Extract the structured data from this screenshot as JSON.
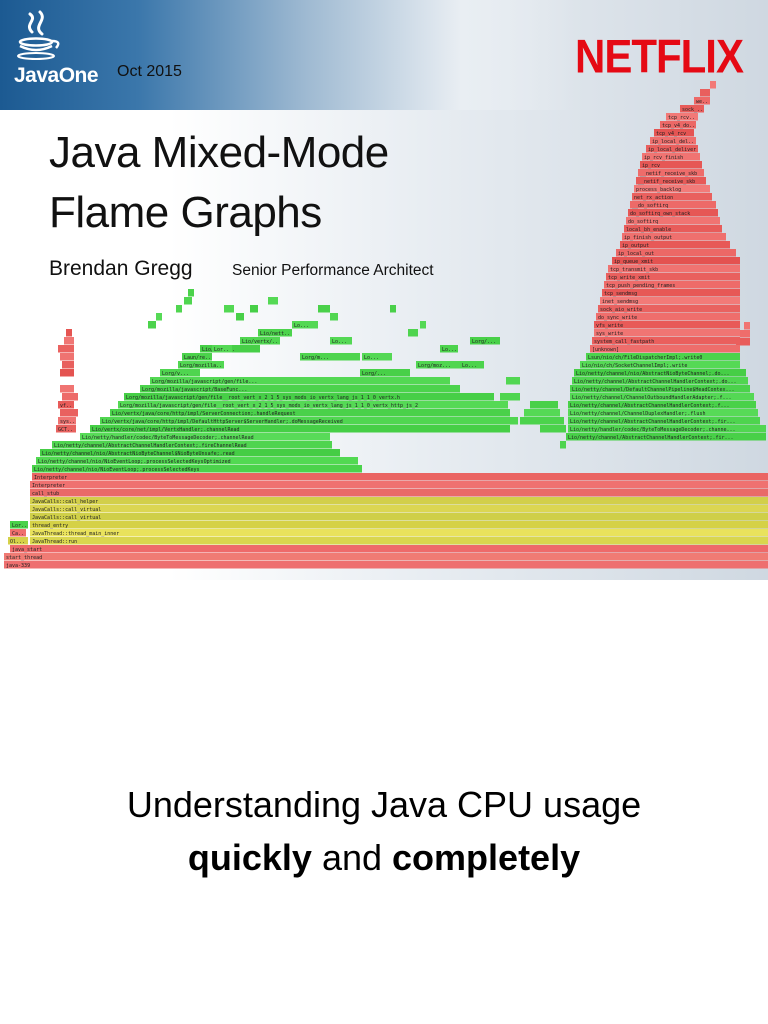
{
  "slide": {
    "logo_text": "JavaOne",
    "date": "Oct 2015",
    "brand": "NETFLIX",
    "title_line1": "Java Mixed-Mode",
    "title_line2": "Flame Graphs",
    "author": "Brendan Gregg",
    "author_role": "Senior Performance Architect"
  },
  "caption": {
    "line1": "Understanding Java CPU usage",
    "line2_bold_a": "quickly",
    "line2_mid": " and ",
    "line2_bold_b": "completely"
  },
  "colors": {
    "netflix_red": "#e50914",
    "java_green": "#3ec93e",
    "jvm_yellow": "#d4d24a",
    "kernel_red": "#e8524f",
    "header_blue": "#1c5a92"
  },
  "icons": {
    "logo": "java-coffee-cup-icon"
  },
  "flame_frames": [
    {
      "label": "java-339",
      "color": "#ee6f6f"
    },
    {
      "label": "start_thread",
      "color": "#f07b74"
    },
    {
      "label": "java_start",
      "color": "#ee6a6a"
    },
    {
      "label": "JavaThread::run",
      "color": "#d9d64e"
    },
    {
      "label": "JavaThread::thread_main_inner",
      "color": "#e9e25c"
    },
    {
      "label": "thread_entry",
      "color": "#d5d146"
    },
    {
      "label": "JavaCalls::call_virtual",
      "color": "#cfcf48"
    },
    {
      "label": "JavaCalls::call_virtual",
      "color": "#dbd652"
    },
    {
      "label": "JavaCalls::call_helper",
      "color": "#d2cf4a"
    },
    {
      "label": "call_stub",
      "color": "#e96a68"
    },
    {
      "label": "Interpreter",
      "color": "#ef7170"
    },
    {
      "label": "Interpreter",
      "color": "#ea6462"
    },
    {
      "label": "Lio/netty/channel/nio/NioEventLoop;.processSelectedKeys",
      "color": "#4bd34b"
    },
    {
      "label": "Lio/netty/channel/nio/NioEventLoop;.processSelectedKeysOptimized",
      "color": "#52d952"
    },
    {
      "label": "Lio/netty/channel/nio/AbstractNioByteChannel$NioByteUnsafe;.read",
      "color": "#45cd45"
    },
    {
      "label": "Lio/netty/channel/AbstractChannelHandlerContext;.fireChannelRead",
      "color": "#4fd44f"
    },
    {
      "label": "Lio/netty/handler/codec/ByteToMessageDecoder;.channelRead",
      "color": "#58db58"
    },
    {
      "label": "Lio/vertx/core/net/impl/VertxHandler;.channelRead",
      "color": "#46cf46"
    },
    {
      "label": "Lio/vertx/java/core/http/impl/DefaultHttpServer$ServerHandler;.doMessageReceived",
      "color": "#50d650"
    },
    {
      "label": "Lio/vertx/java/core/http/impl/ServerConnection;.handleRequest",
      "color": "#4ad14a"
    },
    {
      "label": "Lorg/mozilla/javascript/gen/file__root_vert_x_2_1_5_sys_mods_io_vertx_lang_js_1_1_0_vertx_http_js_2",
      "color": "#55d955"
    },
    {
      "label": "Lorg/mozilla/javascript/gen/file__root_vert_x_2_1_5_sys_mods_io_vertx_lang_js_1_1_0_vertx.h",
      "color": "#47cf47"
    },
    {
      "label": "Lorg/mozilla/javascript/BaseFunc...",
      "color": "#4cd34c"
    },
    {
      "label": "Lorg/mozilla/javascript/gen/file...",
      "color": "#53d853"
    },
    {
      "label": "Lio/netty/channel/AbstractChannelHandlerContext;.fir...",
      "color": "#48d048"
    },
    {
      "label": "Lio/netty/handler/codec/ByteToMessageDecoder;.channe...",
      "color": "#51d651"
    },
    {
      "label": "Lio/netty/channel/AbstractChannelHandlerContext;.fir...",
      "color": "#4ed44e"
    },
    {
      "label": "Lio/netty/channel/ChannelDuplexHandler;.flush",
      "color": "#57da57"
    },
    {
      "label": "Lio/netty/channel/AbstractChannelHandlerContext;.f...",
      "color": "#49d149"
    },
    {
      "label": "Lio/netty/channel/ChannelOutboundHandlerAdapter;.f...",
      "color": "#54d854"
    },
    {
      "label": "Lio/netty/channel/DefaultChannelPipeline$HeadContex...",
      "color": "#4bd24b"
    },
    {
      "label": "Lio/netty/channel/AbstractChannelHandlerContext;.do...",
      "color": "#50d550"
    },
    {
      "label": "Lio/netty/channel/nio/AbstractNioByteChannel;.do...",
      "color": "#46ce46"
    },
    {
      "label": "Lio/nio/ch/SocketChannelImpl;.write",
      "color": "#55d955"
    },
    {
      "label": "Lsun/nio/ch/FileDispatcherImpl;.write0",
      "color": "#4cd34c"
    },
    {
      "label": "[unknown]",
      "color": "#ee6d6b"
    },
    {
      "label": "system_call_fastpath",
      "color": "#ea5f5d"
    },
    {
      "label": "sys_write",
      "color": "#f07573"
    },
    {
      "label": "vfs_write",
      "color": "#e85a58"
    },
    {
      "label": "do_sync_write",
      "color": "#ef6e6c"
    },
    {
      "label": "sock_aio_write",
      "color": "#e96260"
    },
    {
      "label": "inet_sendmsg",
      "color": "#f27a78"
    },
    {
      "label": "tcp_sendmsg",
      "color": "#e75856"
    },
    {
      "label": "tcp_push_pending_frames",
      "color": "#ee6b69"
    },
    {
      "label": "tcp_write_xmit",
      "color": "#e9605e"
    },
    {
      "label": "tcp_transmit_skb",
      "color": "#f07371"
    },
    {
      "label": "ip_queue_xmit",
      "color": "#e45250"
    },
    {
      "label": "ip_local_out",
      "color": "#ec6866"
    },
    {
      "label": "ip_output",
      "color": "#e75957"
    },
    {
      "label": "ip_finish_output",
      "color": "#ef706e"
    },
    {
      "label": "local_bh_enable",
      "color": "#e85c5a"
    },
    {
      "label": "do_softirq",
      "color": "#f07472"
    },
    {
      "label": "do_softirq_own_stack",
      "color": "#e65755"
    },
    {
      "label": "__do_softirq",
      "color": "#ed6a68"
    },
    {
      "label": "net_rx_action",
      "color": "#e9605e"
    },
    {
      "label": "process_backlog",
      "color": "#f27b79"
    },
    {
      "label": "__netif_receive_skb",
      "color": "#e75a58"
    },
    {
      "label": "__netif_receive_skb",
      "color": "#ee6c6a"
    },
    {
      "label": "ip_rcv",
      "color": "#e65755"
    },
    {
      "label": "ip_rcv_finish",
      "color": "#f07472"
    },
    {
      "label": "ip_local_deliver",
      "color": "#e95f5d"
    },
    {
      "label": "ip_local_deliver_...",
      "color": "#ef706e"
    },
    {
      "label": "tcp_v4_rcv",
      "color": "#e55452"
    },
    {
      "label": "tcp_v4_do_rcv",
      "color": "#ec6866"
    },
    {
      "label": "tcp_rcv_establ...",
      "color": "#f27977"
    },
    {
      "label": "sock_...",
      "color": "#e85c5a"
    },
    {
      "label": "we...",
      "color": "#ed6967"
    },
    {
      "label": "Lorg/v...",
      "color": "#4fd54f"
    },
    {
      "label": "Lorg/mozilla/ja...",
      "color": "#52d752"
    },
    {
      "label": "Laun/reflect...",
      "color": "#4bd24b"
    },
    {
      "label": "Lio/nett...",
      "color": "#47cf47"
    },
    {
      "label": "Lio/vertx/...",
      "color": "#50d650"
    },
    {
      "label": "Lio/netty/...",
      "color": "#4cd34c"
    },
    {
      "label": "Lo...",
      "color": "#54d854"
    },
    {
      "label": "Lorg/...",
      "color": "#48d048"
    },
    {
      "label": "Lorg/moz...",
      "color": "#51d651"
    },
    {
      "label": "Lorg/m...",
      "color": "#4ed44e"
    },
    {
      "label": "Lorg/mozilla/javascript/gen/file...",
      "color": "#55d955"
    },
    {
      "label": "Lorg/mozill...",
      "color": "#4ad14a"
    },
    {
      "label": "Ca...",
      "color": "#ef6f6d"
    },
    {
      "label": "Ol...",
      "color": "#d5d148"
    },
    {
      "label": "GCTa...",
      "color": "#e8625f"
    },
    {
      "label": "sysl...",
      "color": "#ef7371"
    },
    {
      "label": "vfs...",
      "color": "#e85b59"
    },
    {
      "label": "do...",
      "color": "#f07472"
    },
    {
      "label": "so...",
      "color": "#e45350"
    },
    {
      "label": "Lo...",
      "color": "#4cd34c"
    }
  ]
}
